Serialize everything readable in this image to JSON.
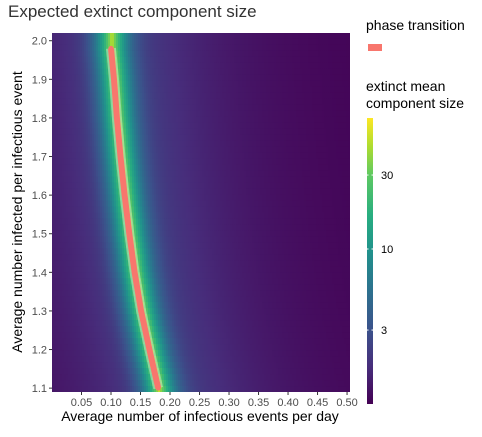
{
  "chart_data": {
    "type": "heatmap",
    "title": "Expected extinct component size",
    "xlabel": "Average number of infectious events per day",
    "ylabel": "Average number infected per infectious event",
    "xlim": [
      0.0,
      0.505
    ],
    "ylim": [
      1.09,
      2.02
    ],
    "x_ticks": [
      "0.05",
      "0.10",
      "0.15",
      "0.20",
      "0.25",
      "0.30",
      "0.35",
      "0.40",
      "0.45",
      "0.50"
    ],
    "x_tick_values": [
      0.05,
      0.1,
      0.15,
      0.2,
      0.25,
      0.3,
      0.35,
      0.4,
      0.45,
      0.5
    ],
    "y_ticks": [
      "1.1",
      "1.2",
      "1.3",
      "1.4",
      "1.5",
      "1.6",
      "1.7",
      "1.8",
      "1.9",
      "2.0"
    ],
    "y_tick_values": [
      1.1,
      1.2,
      1.3,
      1.4,
      1.5,
      1.6,
      1.7,
      1.8,
      1.9,
      2.0
    ],
    "grid": false,
    "fill_scale": "log",
    "fill_palette": "viridis",
    "fill_min": 1,
    "fill_max": 70,
    "phase_transition": {
      "label": "phase transition",
      "color": "#F8766D",
      "points": [
        {
          "x": 0.18,
          "y": 1.1
        },
        {
          "x": 0.165,
          "y": 1.2
        },
        {
          "x": 0.151,
          "y": 1.3
        },
        {
          "x": 0.14,
          "y": 1.4
        },
        {
          "x": 0.131,
          "y": 1.5
        },
        {
          "x": 0.123,
          "y": 1.6
        },
        {
          "x": 0.116,
          "y": 1.7
        },
        {
          "x": 0.11,
          "y": 1.8
        },
        {
          "x": 0.105,
          "y": 1.9
        },
        {
          "x": 0.1,
          "y": 1.98
        }
      ]
    },
    "legend": {
      "title_line1": "extinct mean",
      "title_line2": "component size",
      "placement": "right",
      "ticks": [
        "3",
        "10",
        "30"
      ],
      "tick_values": [
        3,
        10,
        30
      ]
    }
  }
}
